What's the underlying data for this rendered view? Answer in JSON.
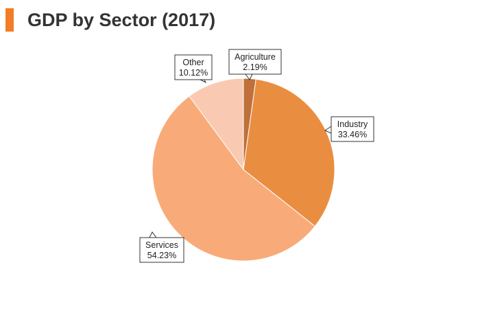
{
  "header": {
    "title": "GDP by Sector (2017)",
    "accent_color": "#f27d26"
  },
  "chart_data": {
    "type": "pie",
    "title": "GDP by Sector (2017)",
    "slices": [
      {
        "label": "Agriculture",
        "value": 2.19,
        "display": "2.19%",
        "color": "#c0703a"
      },
      {
        "label": "Industry",
        "value": 33.46,
        "display": "33.46%",
        "color": "#e98e41"
      },
      {
        "label": "Services",
        "value": 54.23,
        "display": "54.23%",
        "color": "#f8ab79"
      },
      {
        "label": "Other",
        "value": 10.12,
        "display": "10.12%",
        "color": "#f9c9b2"
      }
    ],
    "start_angle": "top",
    "direction": "clockwise",
    "legend": "none",
    "labels": "callouts"
  }
}
